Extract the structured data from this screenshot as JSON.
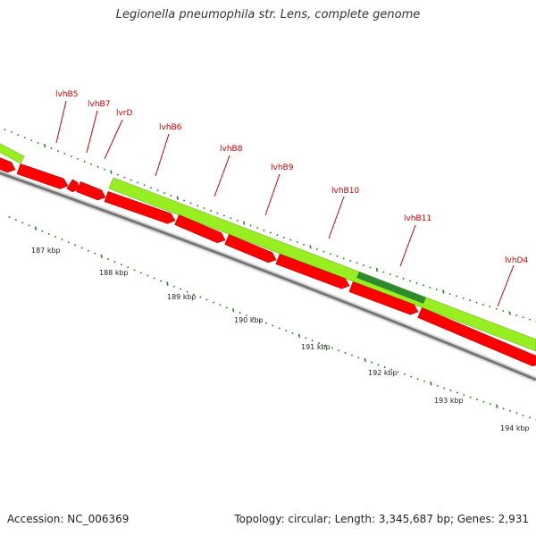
{
  "title": "Legionella pneumophila str. Lens, complete genome",
  "footer": {
    "accession": "Accession: NC_006369",
    "summary": "Topology: circular; Length: 3,345,687 bp; Genes: 2,931"
  },
  "colors": {
    "forward_feature": "#99ee22",
    "forward_highlight": "#2e8a2e",
    "reverse_gene": "#ff0000",
    "backbone": "#777777",
    "tick": "#228822",
    "label": "#cc0000"
  },
  "map": {
    "kbp_labels": [
      "187 kbp",
      "188 kbp",
      "189 kbp",
      "190 kbp",
      "191 kbp",
      "192 kbp",
      "193 kbp",
      "194 kbp"
    ],
    "gene_labels": [
      "lvhB5",
      "lvhB7",
      "lvrD",
      "lvhB6",
      "lvhB8",
      "lvhB9",
      "lvhB10",
      "lvhB11",
      "lvhD4"
    ]
  }
}
